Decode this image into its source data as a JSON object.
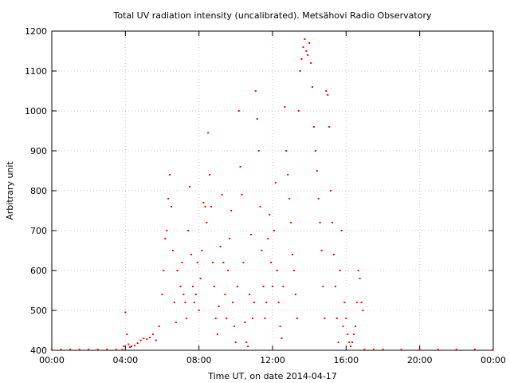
{
  "chart_data": {
    "type": "scatter",
    "title": "Total UV radiation intensity (uncalibrated). Metsähovi Radio Observatory",
    "xlabel": "Time UT, on date 2014-04-17",
    "ylabel": "Arbitrary unit",
    "xlim": [
      "00:00",
      "24:00"
    ],
    "ylim": [
      400,
      1200
    ],
    "x_tick_labels": [
      "00:00",
      "04:00",
      "08:00",
      "12:00",
      "16:00",
      "20:00",
      "00:00"
    ],
    "y_tick_labels": [
      "400",
      "500",
      "600",
      "700",
      "800",
      "900",
      "1000",
      "1100",
      "1200"
    ],
    "grid": true,
    "series_color": "#ff0000",
    "series": [
      {
        "x": [
          "00:00",
          "00:30",
          "01:00",
          "01:30",
          "02:00",
          "02:30",
          "03:00",
          "03:30",
          "03:50",
          "03:55",
          "04:00",
          "04:05",
          "04:10",
          "04:15",
          "04:20",
          "04:30",
          "04:40",
          "04:50",
          "05:00",
          "05:10",
          "05:20",
          "05:30",
          "05:40",
          "05:50",
          "06:00",
          "06:05",
          "06:10",
          "06:15",
          "06:20",
          "06:25",
          "06:30",
          "06:35",
          "06:40",
          "06:45",
          "06:50",
          "07:00",
          "07:05",
          "07:10",
          "07:15",
          "07:20",
          "07:25",
          "07:30",
          "07:35",
          "07:40",
          "07:45",
          "07:50",
          "07:55",
          "08:00",
          "08:05",
          "08:10",
          "08:15",
          "08:20",
          "08:25",
          "08:30",
          "08:35",
          "08:40",
          "08:45",
          "08:50",
          "08:55",
          "09:00",
          "09:05",
          "09:10",
          "09:15",
          "09:20",
          "09:25",
          "09:30",
          "09:35",
          "09:40",
          "09:45",
          "09:50",
          "09:55",
          "10:00",
          "10:05",
          "10:10",
          "10:15",
          "10:20",
          "10:25",
          "10:30",
          "10:35",
          "10:40",
          "10:45",
          "10:50",
          "10:55",
          "11:00",
          "11:05",
          "11:10",
          "11:15",
          "11:20",
          "11:25",
          "11:30",
          "11:35",
          "11:40",
          "11:45",
          "11:50",
          "11:55",
          "12:00",
          "12:05",
          "12:10",
          "12:15",
          "12:20",
          "12:25",
          "12:30",
          "12:35",
          "12:40",
          "12:45",
          "12:50",
          "12:55",
          "13:00",
          "13:05",
          "13:10",
          "13:15",
          "13:20",
          "13:25",
          "13:30",
          "13:35",
          "13:40",
          "13:45",
          "13:50",
          "13:55",
          "14:00",
          "14:05",
          "14:10",
          "14:15",
          "14:20",
          "14:25",
          "14:30",
          "14:35",
          "14:40",
          "14:45",
          "14:50",
          "14:55",
          "15:00",
          "15:05",
          "15:10",
          "15:15",
          "15:20",
          "15:25",
          "15:30",
          "15:35",
          "15:40",
          "15:45",
          "15:50",
          "15:55",
          "16:00",
          "16:05",
          "16:10",
          "16:15",
          "16:20",
          "16:25",
          "16:30",
          "16:35",
          "16:40",
          "16:45",
          "16:50",
          "16:55",
          "17:00",
          "17:30",
          "18:00",
          "19:00",
          "20:00",
          "21:00",
          "22:00",
          "23:00",
          "23:59"
        ],
        "y": [
          402,
          402,
          402,
          402,
          402,
          402,
          402,
          402,
          402,
          410,
          495,
          440,
          415,
          408,
          410,
          412,
          418,
          425,
          430,
          428,
          432,
          440,
          425,
          460,
          540,
          600,
          680,
          700,
          780,
          840,
          760,
          650,
          520,
          470,
          600,
          560,
          620,
          540,
          520,
          480,
          700,
          810,
          640,
          560,
          520,
          540,
          620,
          500,
          580,
          650,
          770,
          760,
          720,
          945,
          840,
          760,
          620,
          560,
          480,
          440,
          510,
          660,
          790,
          620,
          540,
          480,
          600,
          680,
          750,
          520,
          460,
          420,
          560,
          1000,
          860,
          790,
          620,
          470,
          420,
          410,
          540,
          690,
          480,
          520,
          1050,
          980,
          900,
          760,
          650,
          560,
          480,
          520,
          680,
          740,
          620,
          560,
          700,
          820,
          600,
          520,
          460,
          430,
          560,
          1010,
          900,
          840,
          780,
          720,
          640,
          600,
          540,
          480,
          1000,
          1100,
          1130,
          1160,
          1180,
          1150,
          1140,
          1170,
          1120,
          1060,
          960,
          900,
          850,
          780,
          720,
          650,
          560,
          480,
          1050,
          1040,
          960,
          800,
          720,
          640,
          560,
          480,
          420,
          600,
          700,
          460,
          520,
          480,
          440,
          420,
          410,
          420,
          440,
          460,
          520,
          600,
          580,
          520,
          500,
          402,
          402,
          402,
          402,
          402,
          402,
          402,
          402,
          402
        ]
      }
    ]
  }
}
